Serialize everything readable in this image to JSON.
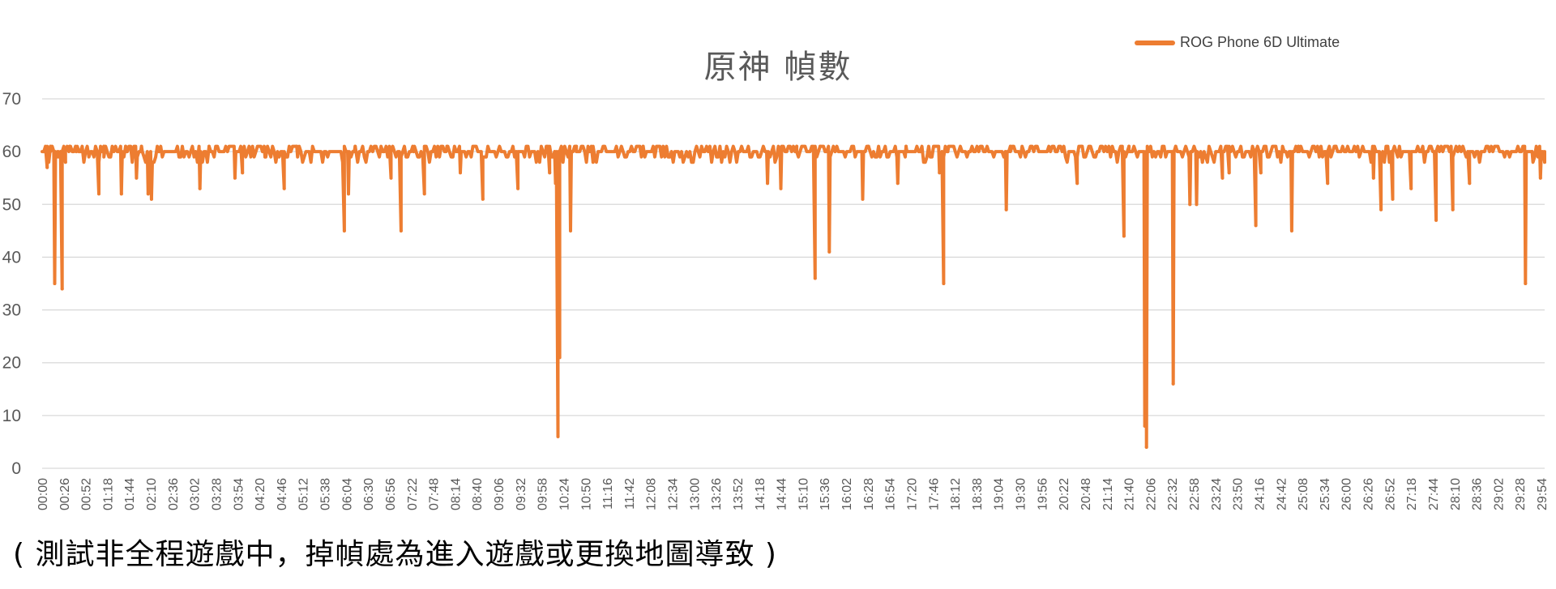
{
  "chart_data": {
    "type": "line",
    "title": "原神 幀數",
    "legend": "top-right",
    "grid": true,
    "colors": {
      "series": "#ED7D31",
      "grid": "#D9D9D9",
      "text": "#595959"
    },
    "ylim": [
      0,
      70
    ],
    "y_ticks": [
      "0",
      "10",
      "20",
      "30",
      "40",
      "50",
      "60",
      "70"
    ],
    "x_ticks": [
      "00:00",
      "00:26",
      "00:52",
      "01:18",
      "01:44",
      "02:10",
      "02:36",
      "03:02",
      "03:28",
      "03:54",
      "04:20",
      "04:46",
      "05:12",
      "05:38",
      "06:04",
      "06:30",
      "06:56",
      "07:22",
      "07:48",
      "08:14",
      "08:40",
      "09:06",
      "09:32",
      "09:58",
      "10:24",
      "10:50",
      "11:16",
      "11:42",
      "12:08",
      "12:34",
      "13:00",
      "13:26",
      "13:52",
      "14:18",
      "14:44",
      "15:10",
      "15:36",
      "16:02",
      "16:28",
      "16:54",
      "17:20",
      "17:46",
      "18:12",
      "18:38",
      "19:04",
      "19:30",
      "19:56",
      "20:22",
      "20:48",
      "21:14",
      "21:40",
      "22:06",
      "22:32",
      "22:58",
      "23:24",
      "23:50",
      "24:16",
      "24:42",
      "25:08",
      "25:34",
      "26:00",
      "26:26",
      "26:52",
      "27:18",
      "27:44",
      "28:10",
      "28:36",
      "29:02",
      "29:28",
      "29:54"
    ],
    "series": [
      {
        "name": "ROG Phone 6D Ultimate",
        "x_range": [
          "00:00",
          "30:00"
        ],
        "baseline": 60,
        "values": [
          {
            "x": "00:02",
            "y": 60
          },
          {
            "x": "00:06",
            "y": 57
          },
          {
            "x": "00:10",
            "y": 61
          },
          {
            "x": "00:15",
            "y": 35
          },
          {
            "x": "00:19",
            "y": 60
          },
          {
            "x": "00:24",
            "y": 34
          },
          {
            "x": "00:28",
            "y": 58
          },
          {
            "x": "00:33",
            "y": 61
          },
          {
            "x": "00:41",
            "y": 60
          },
          {
            "x": "01:08",
            "y": 52
          },
          {
            "x": "01:14",
            "y": 61
          },
          {
            "x": "01:35",
            "y": 52
          },
          {
            "x": "01:40",
            "y": 61
          },
          {
            "x": "01:53",
            "y": 55
          },
          {
            "x": "01:59",
            "y": 61
          },
          {
            "x": "02:07",
            "y": 52
          },
          {
            "x": "02:11",
            "y": 51
          },
          {
            "x": "02:20",
            "y": 60
          },
          {
            "x": "03:09",
            "y": 53
          },
          {
            "x": "03:20",
            "y": 61
          },
          {
            "x": "03:51",
            "y": 55
          },
          {
            "x": "04:00",
            "y": 56
          },
          {
            "x": "04:27",
            "y": 59
          },
          {
            "x": "04:50",
            "y": 53
          },
          {
            "x": "05:05",
            "y": 61
          },
          {
            "x": "06:02",
            "y": 45
          },
          {
            "x": "06:07",
            "y": 52
          },
          {
            "x": "06:15",
            "y": 61
          },
          {
            "x": "06:58",
            "y": 55
          },
          {
            "x": "07:10",
            "y": 45
          },
          {
            "x": "07:25",
            "y": 60
          },
          {
            "x": "07:38",
            "y": 52
          },
          {
            "x": "08:05",
            "y": 61
          },
          {
            "x": "08:21",
            "y": 56
          },
          {
            "x": "08:48",
            "y": 51
          },
          {
            "x": "09:00",
            "y": 60
          },
          {
            "x": "09:30",
            "y": 53
          },
          {
            "x": "10:08",
            "y": 56
          },
          {
            "x": "10:15",
            "y": 54
          },
          {
            "x": "10:18",
            "y": 6
          },
          {
            "x": "10:20",
            "y": 21
          },
          {
            "x": "10:23",
            "y": 60
          },
          {
            "x": "10:33",
            "y": 45
          },
          {
            "x": "10:40",
            "y": 61
          },
          {
            "x": "11:00",
            "y": 58
          },
          {
            "x": "12:00",
            "y": 61
          },
          {
            "x": "14:29",
            "y": 54
          },
          {
            "x": "14:45",
            "y": 53
          },
          {
            "x": "15:04",
            "y": 61
          },
          {
            "x": "15:26",
            "y": 36
          },
          {
            "x": "15:32",
            "y": 61
          },
          {
            "x": "15:43",
            "y": 41
          },
          {
            "x": "15:50",
            "y": 60
          },
          {
            "x": "16:23",
            "y": 51
          },
          {
            "x": "16:30",
            "y": 61
          },
          {
            "x": "17:05",
            "y": 54
          },
          {
            "x": "17:15",
            "y": 61
          },
          {
            "x": "17:55",
            "y": 56
          },
          {
            "x": "18:00",
            "y": 35
          },
          {
            "x": "18:05",
            "y": 60
          },
          {
            "x": "19:15",
            "y": 49
          },
          {
            "x": "19:20",
            "y": 61
          },
          {
            "x": "20:40",
            "y": 54
          },
          {
            "x": "20:45",
            "y": 61
          },
          {
            "x": "21:36",
            "y": 44
          },
          {
            "x": "21:42",
            "y": 61
          },
          {
            "x": "22:01",
            "y": 8
          },
          {
            "x": "22:03",
            "y": 4
          },
          {
            "x": "22:05",
            "y": 60
          },
          {
            "x": "22:35",
            "y": 16
          },
          {
            "x": "22:38",
            "y": 61
          },
          {
            "x": "22:55",
            "y": 50
          },
          {
            "x": "23:03",
            "y": 50
          },
          {
            "x": "23:10",
            "y": 58
          },
          {
            "x": "23:34",
            "y": 55
          },
          {
            "x": "23:42",
            "y": 56
          },
          {
            "x": "24:05",
            "y": 60
          },
          {
            "x": "24:14",
            "y": 46
          },
          {
            "x": "24:20",
            "y": 56
          },
          {
            "x": "24:32",
            "y": 60
          },
          {
            "x": "24:57",
            "y": 45
          },
          {
            "x": "25:05",
            "y": 61
          },
          {
            "x": "25:40",
            "y": 54
          },
          {
            "x": "25:50",
            "y": 61
          },
          {
            "x": "26:35",
            "y": 55
          },
          {
            "x": "26:44",
            "y": 49
          },
          {
            "x": "26:58",
            "y": 51
          },
          {
            "x": "27:20",
            "y": 53
          },
          {
            "x": "27:50",
            "y": 47
          },
          {
            "x": "28:10",
            "y": 49
          },
          {
            "x": "28:30",
            "y": 54
          },
          {
            "x": "29:37",
            "y": 35
          },
          {
            "x": "29:45",
            "y": 60
          },
          {
            "x": "29:55",
            "y": 55
          },
          {
            "x": "30:00",
            "y": 58
          }
        ]
      }
    ]
  },
  "legend_label": "ROG Phone 6D Ultimate",
  "footnote": "( 測試非全程遊戲中，掉幀處為進入遊戲或更換地圖導致 )"
}
